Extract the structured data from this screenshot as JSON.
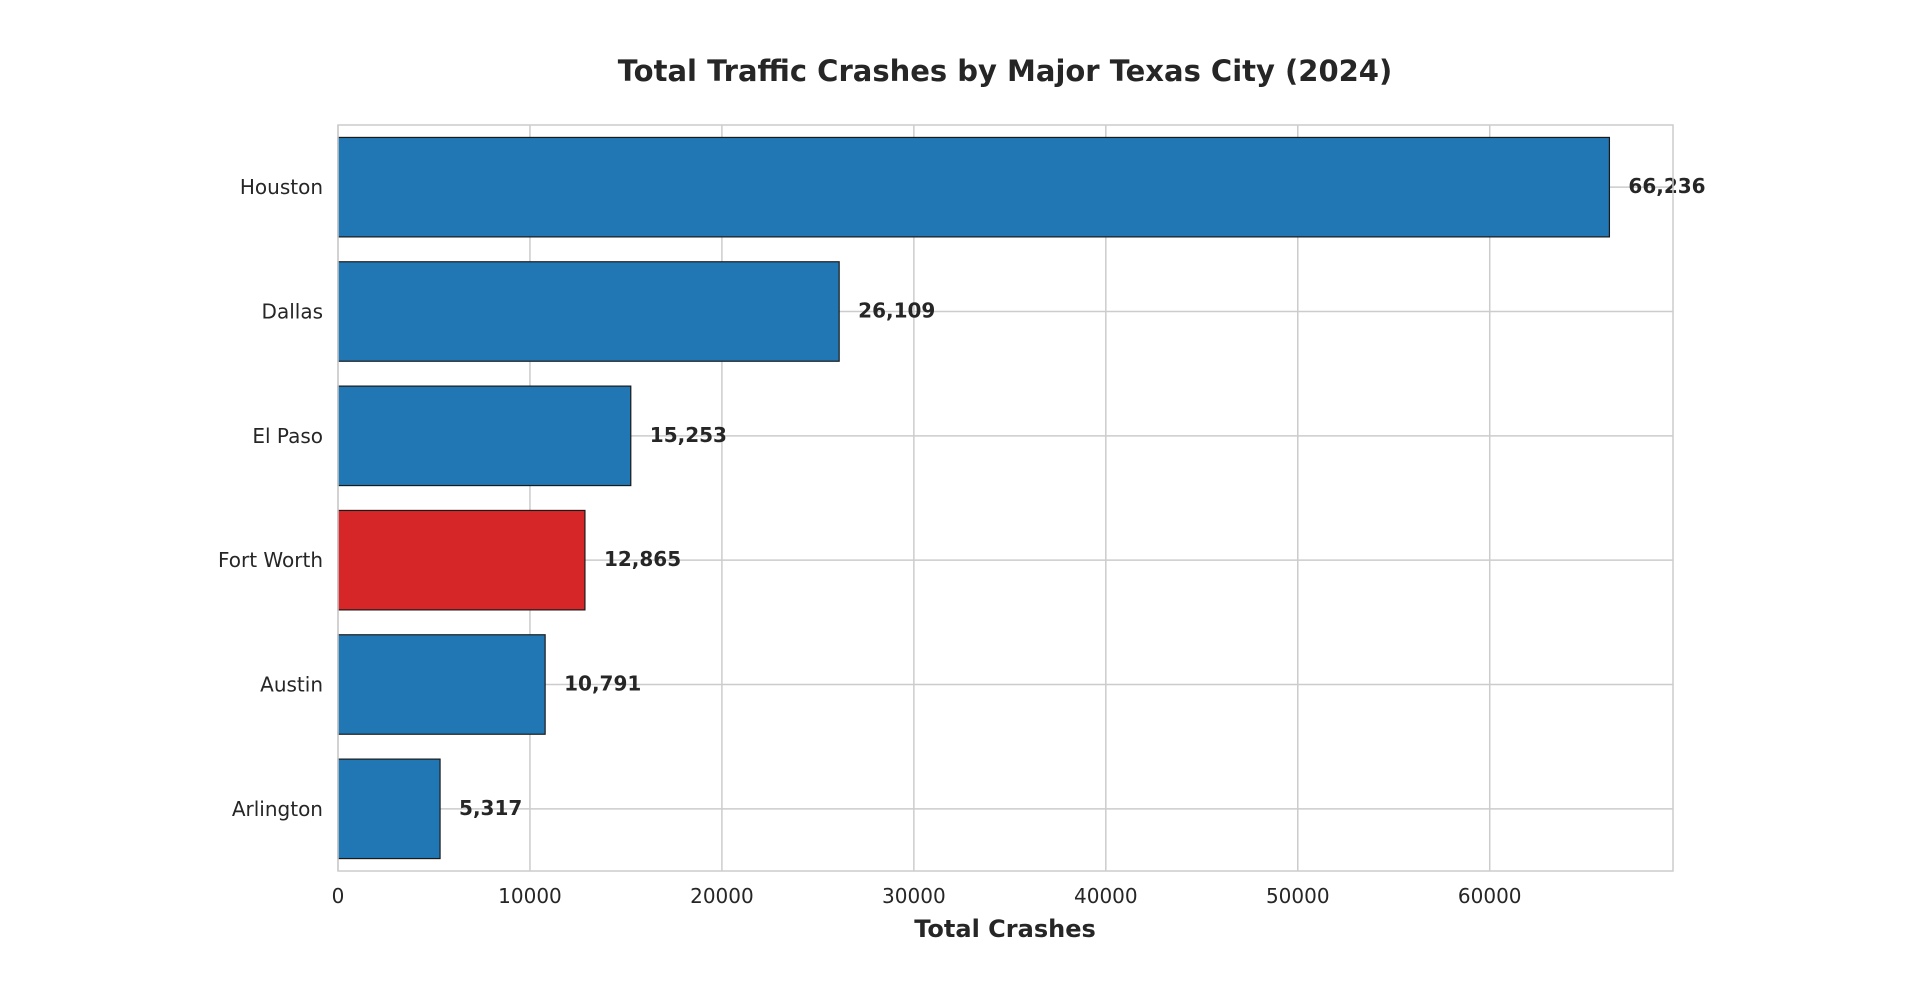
{
  "chart_data": {
    "type": "bar",
    "orientation": "horizontal",
    "title": "Total Traffic Crashes by Major Texas City (2024)",
    "xlabel": "Total Crashes",
    "ylabel": "",
    "categories": [
      "Houston",
      "Dallas",
      "El Paso",
      "Fort Worth",
      "Austin",
      "Arlington"
    ],
    "values": [
      66236,
      26109,
      15253,
      12865,
      10791,
      5317
    ],
    "data_labels": [
      "66,236",
      "26,109",
      "15,253",
      "12,865",
      "10,791",
      "5,317"
    ],
    "highlight": "Fort Worth",
    "xlim": [
      0,
      69548
    ],
    "xticks": [
      0,
      10000,
      20000,
      30000,
      40000,
      50000,
      60000
    ],
    "xtick_labels": [
      "0",
      "10000",
      "20000",
      "30000",
      "40000",
      "50000",
      "60000"
    ],
    "grid": true,
    "colors": {
      "default": "#2077b4",
      "highlight": "#d62628",
      "edge": "#1a1a1a",
      "grid": "#cccccc"
    }
  }
}
